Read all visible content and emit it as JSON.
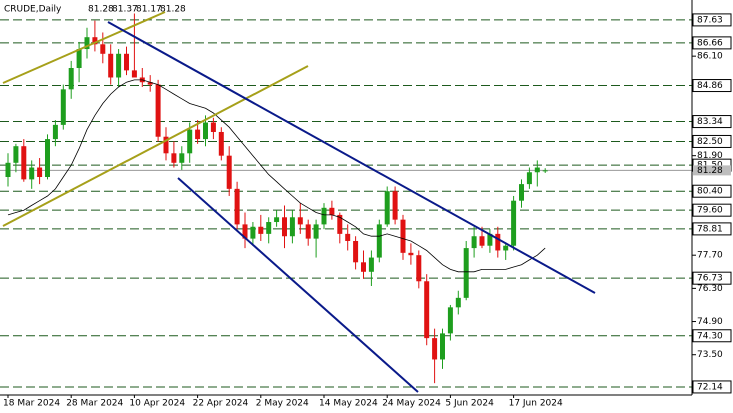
{
  "chart_data": {
    "type": "candlestick",
    "title": "CRUDE,Daily",
    "last_ohlc": [
      81.28,
      81.37,
      81.17,
      81.28
    ],
    "categories": [
      "18 Mar 2024",
      null,
      null,
      null,
      null,
      null,
      null,
      null,
      "28 Mar 2024",
      null,
      null,
      null,
      null,
      null,
      null,
      null,
      "10 Apr 2024",
      null,
      null,
      null,
      null,
      null,
      null,
      null,
      "22 Apr 2024",
      null,
      null,
      null,
      null,
      null,
      null,
      null,
      "2 May 2024",
      null,
      null,
      null,
      null,
      null,
      null,
      null,
      "14 May 2024",
      null,
      null,
      null,
      null,
      null,
      null,
      null,
      "24 May 2024",
      null,
      null,
      null,
      null,
      null,
      null,
      null,
      "5 Jun 2024",
      null,
      null,
      null,
      null,
      null,
      null,
      null,
      "17 Jun 2024",
      null,
      null,
      null,
      null
    ],
    "open": [
      81.0,
      81.6,
      82.3,
      80.9,
      81.4,
      81.0,
      82.6,
      83.2,
      84.7,
      85.6,
      86.4,
      86.9,
      86.6,
      86.2,
      85.2,
      86.2,
      85.5,
      85.2,
      85.0,
      84.9,
      82.7,
      82.0,
      81.6,
      82.0,
      83.0,
      82.6,
      83.3,
      82.9,
      81.9,
      80.5,
      79.0,
      78.4,
      78.9,
      78.6,
      79.1,
      79.3,
      78.5,
      79.3,
      79.0,
      78.4,
      79.0,
      79.7,
      79.4,
      78.6,
      78.3,
      77.4,
      77.0,
      77.6,
      79.0,
      80.4,
      79.2,
      77.8,
      77.7,
      76.6,
      74.2,
      73.3,
      74.4,
      75.5,
      75.9,
      78.0,
      78.5,
      78.1,
      78.6,
      77.9,
      78.1,
      80.0,
      80.7,
      81.2,
      81.28
    ],
    "high": [
      82.0,
      82.4,
      82.6,
      81.7,
      81.8,
      82.8,
      83.4,
      84.9,
      85.9,
      86.7,
      87.3,
      87.6,
      87.1,
      86.6,
      86.4,
      86.5,
      87.9,
      85.6,
      85.3,
      85.1,
      83.1,
      82.5,
      82.3,
      83.3,
      83.4,
      83.6,
      83.5,
      83.1,
      82.3,
      80.8,
      79.5,
      79.1,
      79.4,
      79.3,
      79.6,
      79.8,
      79.6,
      79.9,
      79.2,
      79.2,
      79.9,
      80.0,
      79.5,
      79.0,
      78.5,
      77.9,
      77.9,
      79.2,
      80.6,
      80.6,
      79.4,
      78.2,
      77.9,
      76.9,
      74.6,
      74.6,
      75.6,
      76.2,
      78.3,
      78.9,
      78.9,
      78.8,
      78.9,
      78.2,
      80.2,
      80.9,
      81.4,
      81.7,
      81.37
    ],
    "low": [
      80.6,
      81.2,
      80.8,
      80.5,
      80.7,
      80.9,
      82.3,
      83.0,
      84.3,
      85.0,
      86.0,
      86.3,
      85.8,
      84.9,
      84.8,
      85.3,
      85.3,
      84.8,
      84.6,
      82.5,
      81.7,
      81.4,
      81.3,
      81.6,
      82.4,
      82.3,
      82.6,
      81.7,
      80.2,
      78.8,
      78.0,
      78.1,
      78.3,
      78.2,
      78.9,
      78.0,
      78.2,
      78.6,
      78.1,
      77.6,
      78.8,
      79.2,
      78.2,
      77.9,
      77.1,
      76.7,
      76.4,
      77.4,
      78.9,
      79.0,
      77.5,
      77.3,
      76.3,
      73.9,
      72.3,
      72.9,
      74.1,
      75.2,
      75.8,
      77.6,
      78.0,
      77.8,
      77.6,
      77.5,
      77.9,
      79.7,
      80.5,
      80.6,
      81.17
    ],
    "close": [
      81.6,
      82.3,
      80.9,
      81.4,
      81.0,
      82.6,
      83.2,
      84.7,
      85.6,
      86.4,
      86.9,
      86.6,
      86.2,
      85.2,
      86.2,
      85.5,
      85.2,
      85.0,
      84.9,
      82.7,
      82.0,
      81.6,
      82.0,
      83.0,
      82.6,
      83.3,
      82.9,
      81.9,
      80.5,
      79.0,
      78.4,
      78.9,
      78.6,
      79.1,
      79.3,
      78.5,
      79.3,
      79.0,
      78.4,
      79.0,
      79.7,
      79.4,
      78.6,
      78.3,
      77.4,
      77.0,
      77.6,
      79.0,
      80.4,
      79.2,
      77.8,
      77.7,
      76.6,
      74.2,
      73.3,
      74.4,
      75.5,
      75.9,
      78.0,
      78.5,
      78.1,
      78.6,
      77.9,
      78.1,
      80.0,
      80.7,
      81.2,
      81.4,
      81.28
    ],
    "moving_average": [
      79.4,
      79.5,
      79.6,
      79.8,
      80.0,
      80.2,
      80.5,
      81.0,
      81.5,
      82.2,
      83.0,
      83.6,
      84.1,
      84.5,
      84.8,
      85.0,
      85.1,
      85.1,
      85.0,
      84.9,
      84.7,
      84.5,
      84.3,
      84.1,
      84.0,
      83.9,
      83.7,
      83.4,
      83.1,
      82.7,
      82.3,
      81.9,
      81.5,
      81.1,
      80.8,
      80.5,
      80.2,
      79.9,
      79.7,
      79.5,
      79.4,
      79.4,
      79.3,
      79.1,
      78.9,
      78.6,
      78.5,
      78.5,
      78.6,
      78.5,
      78.4,
      78.3,
      78.1,
      77.9,
      77.6,
      77.3,
      77.1,
      77.0,
      77.0,
      77.0,
      77.1,
      77.1,
      77.1,
      77.1,
      77.2,
      77.3,
      77.5,
      77.7,
      78.0
    ],
    "up_color": "#1e9e1e",
    "down_color": "#e01212",
    "ylim": [
      71.8,
      88.47
    ],
    "yticks": [
      86.1,
      81.9,
      77.7,
      76.3,
      74.9,
      73.5
    ],
    "levels": [
      87.63,
      86.66,
      84.86,
      83.34,
      82.5,
      81.5,
      80.4,
      79.6,
      78.81,
      76.73,
      74.3,
      72.14
    ],
    "level_labels": [
      "87.63",
      "86.66",
      "84.86",
      "83.34",
      "82.50",
      "81.50",
      "80.40",
      "79.60",
      "78.81",
      "76.73",
      "74.30",
      "72.14"
    ],
    "ytick_labels": [
      "86.10",
      "81.90",
      "77.70",
      "76.30",
      "74.90",
      "73.50"
    ],
    "current_price": 81.28
  }
}
